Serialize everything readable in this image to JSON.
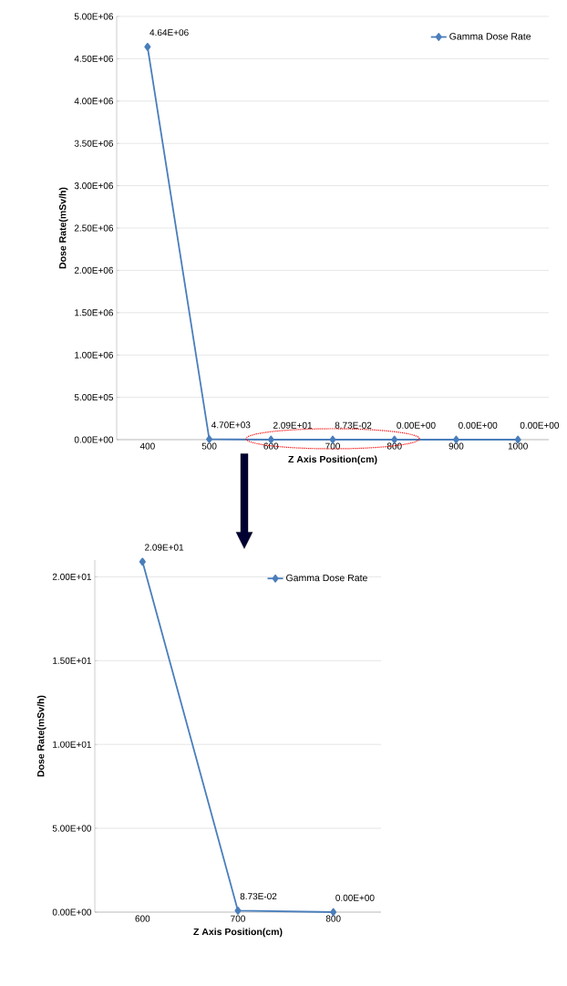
{
  "chart_data": [
    {
      "type": "line",
      "categories": [
        "400",
        "500",
        "600",
        "700",
        "800",
        "900",
        "1000"
      ],
      "series": [
        {
          "name": "Gamma Dose Rate",
          "color": "#4a7ebb",
          "values": [
            4640000,
            4700,
            20.9,
            0.0873,
            0,
            0,
            0
          ],
          "value_labels": [
            "4.64E+06",
            "4.70E+03",
            "2.09E+01",
            "8.73E-02",
            "0.00E+00",
            "0.00E+00",
            "0.00E+00"
          ]
        }
      ],
      "xlabel": "Z Axis Position(cm)",
      "ylabel": "Dose Rate(mSv/h)",
      "ylim": [
        0,
        5000000
      ],
      "yticks": [
        {
          "value": 0,
          "label": "0.00E+00"
        },
        {
          "value": 500000,
          "label": "5.00E+05"
        },
        {
          "value": 1000000,
          "label": "1.00E+06"
        },
        {
          "value": 1500000,
          "label": "1.50E+06"
        },
        {
          "value": 2000000,
          "label": "2.00E+06"
        },
        {
          "value": 2500000,
          "label": "2.50E+06"
        },
        {
          "value": 3000000,
          "label": "3.00E+06"
        },
        {
          "value": 3500000,
          "label": "3.50E+06"
        },
        {
          "value": 4000000,
          "label": "4.00E+06"
        },
        {
          "value": 4500000,
          "label": "4.50E+06"
        },
        {
          "value": 5000000,
          "label": "5.00E+06"
        }
      ],
      "grid": "y",
      "legend": "top right",
      "marker": "diamond"
    },
    {
      "type": "line",
      "categories": [
        "600",
        "700",
        "800"
      ],
      "series": [
        {
          "name": "Gamma Dose Rate",
          "color": "#4a7ebb",
          "values": [
            20.9,
            0.0873,
            0
          ],
          "value_labels": [
            "2.09E+01",
            "8.73E-02",
            "0.00E+00"
          ]
        }
      ],
      "xlabel": "Z Axis Position(cm)",
      "ylabel": "Dose Rate(mSv/h)",
      "ylim": [
        0,
        21
      ],
      "yticks": [
        {
          "value": 0,
          "label": "0.00E+00"
        },
        {
          "value": 5,
          "label": "5.00E+00"
        },
        {
          "value": 10,
          "label": "1.00E+01"
        },
        {
          "value": 15,
          "label": "1.50E+01"
        },
        {
          "value": 20,
          "label": "2.00E+01"
        }
      ],
      "grid": "y",
      "legend": "top right",
      "marker": "diamond"
    }
  ]
}
